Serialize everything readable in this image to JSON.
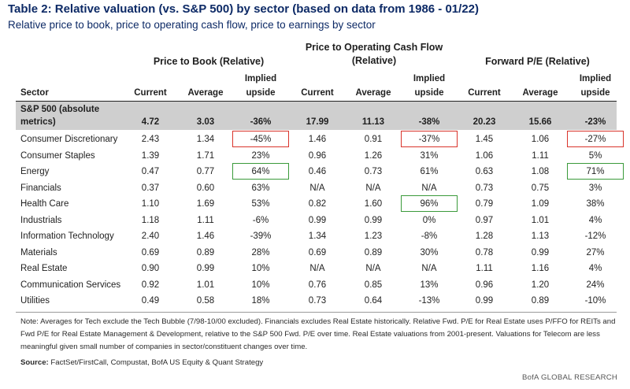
{
  "title": "Table 2: Relative valuation (vs. S&P 500) by sector (based on data from 1986 - 01/22)",
  "subtitle": "Relative price to book, price to operating cash flow, price to earnings by sector",
  "groups": {
    "pb": "Price to Book (Relative)",
    "pocf_line1": "Price to Operating Cash Flow",
    "pocf_line2": "(Relative)",
    "pe": "Forward P/E (Relative)"
  },
  "columns": {
    "sector": "Sector",
    "current": "Current",
    "average": "Average",
    "implied_line1": "Implied",
    "implied_line2": "upside"
  },
  "sp500": {
    "label_line1": "S&P 500 (absolute",
    "label_line2": "metrics)",
    "values": [
      "4.72",
      "3.03",
      "-36%",
      "17.99",
      "11.13",
      "-38%",
      "20.23",
      "15.66",
      "-23%"
    ]
  },
  "rows": [
    {
      "sector": "Consumer Discretionary",
      "values": [
        "2.43",
        "1.34",
        "-45%",
        "1.46",
        "0.91",
        "-37%",
        "1.45",
        "1.06",
        "-27%"
      ]
    },
    {
      "sector": "Consumer Staples",
      "values": [
        "1.39",
        "1.71",
        "23%",
        "0.96",
        "1.26",
        "31%",
        "1.06",
        "1.11",
        "5%"
      ]
    },
    {
      "sector": "Energy",
      "values": [
        "0.47",
        "0.77",
        "64%",
        "0.46",
        "0.73",
        "61%",
        "0.63",
        "1.08",
        "71%"
      ]
    },
    {
      "sector": "Financials",
      "values": [
        "0.37",
        "0.60",
        "63%",
        "N/A",
        "N/A",
        "N/A",
        "0.73",
        "0.75",
        "3%"
      ]
    },
    {
      "sector": "Health Care",
      "values": [
        "1.10",
        "1.69",
        "53%",
        "0.82",
        "1.60",
        "96%",
        "0.79",
        "1.09",
        "38%"
      ]
    },
    {
      "sector": "Industrials",
      "values": [
        "1.18",
        "1.11",
        "-6%",
        "0.99",
        "0.99",
        "0%",
        "0.97",
        "1.01",
        "4%"
      ]
    },
    {
      "sector": "Information Technology",
      "values": [
        "2.40",
        "1.46",
        "-39%",
        "1.34",
        "1.23",
        "-8%",
        "1.28",
        "1.13",
        "-12%"
      ]
    },
    {
      "sector": "Materials",
      "values": [
        "0.69",
        "0.89",
        "28%",
        "0.69",
        "0.89",
        "30%",
        "0.78",
        "0.99",
        "27%"
      ]
    },
    {
      "sector": "Real Estate",
      "values": [
        "0.90",
        "0.99",
        "10%",
        "N/A",
        "N/A",
        "N/A",
        "1.11",
        "1.16",
        "4%"
      ]
    },
    {
      "sector": "Communication Services",
      "values": [
        "0.92",
        "1.01",
        "10%",
        "0.76",
        "0.85",
        "13%",
        "0.96",
        "1.20",
        "24%"
      ]
    },
    {
      "sector": "Utilities",
      "values": [
        "0.49",
        "0.58",
        "18%",
        "0.73",
        "0.64",
        "-13%",
        "0.99",
        "0.89",
        "-10%"
      ]
    }
  ],
  "highlights": {
    "red": "#d9342b",
    "green": "#3a9a3a"
  },
  "note": "Note: Averages for Tech exclude the Tech Bubble (7/98-10/00 excluded). Financials excludes Real Estate historically. Relative Fwd. P/E for Real Estate uses P/FFO for REITs and Fwd P/E for Real Estate Management & Development, relative to the S&P 500 Fwd. P/E over time. Real Estate valuations from 2001-present. Valuations for Telecom are less meaningful given small number of companies in sector/constituent changes over time.",
  "source_label": "Source:",
  "source_text": " FactSet/FirstCall, Compustat, BofA US Equity & Quant Strategy",
  "brand": "BofA GLOBAL RESEARCH"
}
